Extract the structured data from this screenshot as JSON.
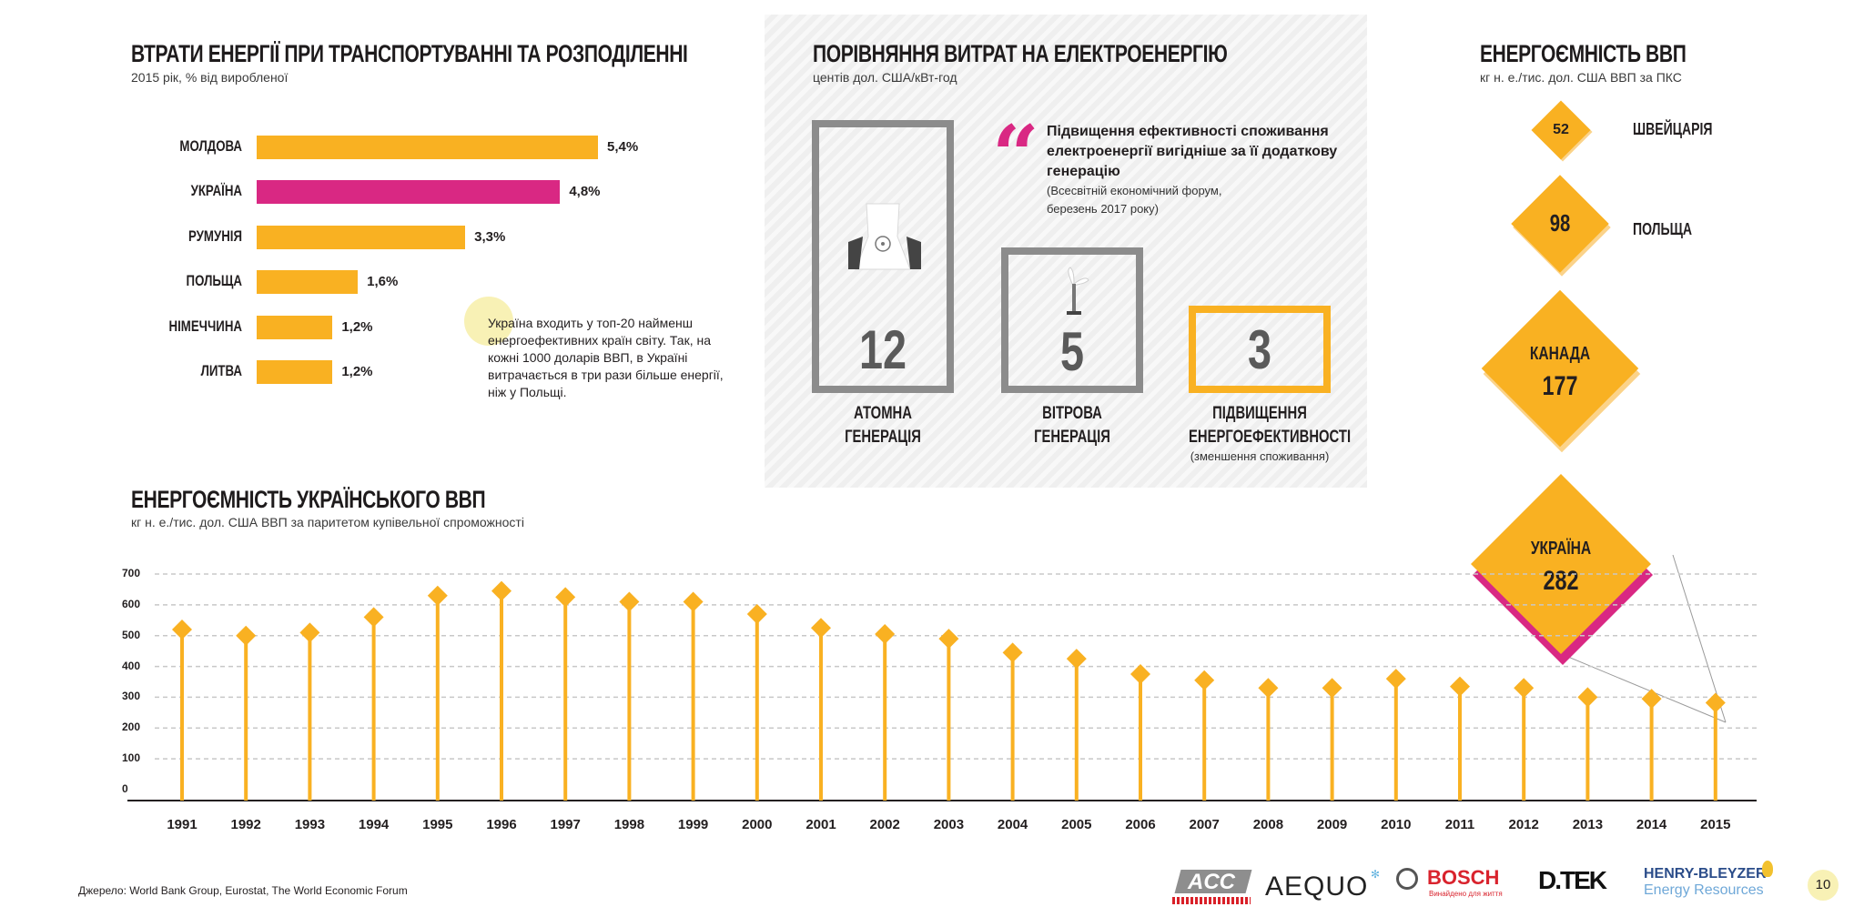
{
  "losses": {
    "title": "ВТРАТИ ЕНЕРГІЇ ПРИ ТРАНСПОРТУВАННІ ТА РОЗПОДІЛЕННІ",
    "subtitle": "2015 рік, % від виробленої",
    "note": "Україна входить у топ-20 найменш енергоефективних країн світу. Так, на кожні 1000 доларів ВВП, в Україні витрачається в три рази більше енергії, ніж у Польщі.",
    "colors": {
      "default": "#f9b122",
      "highlight": "#d92883"
    }
  },
  "comparison": {
    "title": "ПОРІВНЯННЯ ВИТРАТ НА ЕЛЕКТРОЕНЕРГІЮ",
    "subtitle": "центів дол. США/кВт-год",
    "quote": "Підвищення ефективності споживання електроенергії вигідніше за її додаткову генерацію",
    "quote_source": "(Всесвітній економічний форум, березень 2017 року)",
    "quote_icon": "quote-mark-icon",
    "items": [
      {
        "value": "12",
        "label1": "АТОМНА",
        "label2": "ГЕНЕРАЦІЯ",
        "icon": "nuclear-plant-icon"
      },
      {
        "value": "5",
        "label1": "ВІТРОВА",
        "label2": "ГЕНЕРАЦІЯ",
        "icon": "wind-turbine-icon"
      },
      {
        "value": "3",
        "label1": "ПІДВИЩЕННЯ",
        "label2": "ЕНЕРГОЕФЕКТИВНОСТІ",
        "note": "(зменшення споживання)"
      }
    ]
  },
  "intensity": {
    "title": "ЕНЕРГОЄМНІСТЬ ВВП",
    "subtitle": "кг н. е./тис. дол. США ВВП за ПКС",
    "countries": [
      {
        "name": "ШВЕЙЦАРІЯ",
        "value": "52"
      },
      {
        "name": "ПОЛЬЩА",
        "value": "98"
      },
      {
        "name": "КАНАДА",
        "value": "177"
      },
      {
        "name": "УКРАЇНА",
        "value": "282"
      }
    ]
  },
  "ukraine": {
    "title": "ЕНЕРГОЄМНІСТЬ УКРАЇНСЬКОГО ВВП",
    "subtitle": "кг н. е./тис. дол. США ВВП за паритетом купівельної спроможності"
  },
  "chart_data": [
    {
      "type": "bar",
      "orientation": "horizontal",
      "title": "ВТРАТИ ЕНЕРГІЇ ПРИ ТРАНСПОРТУВАННІ ТА РОЗПОДІЛЕННІ",
      "subtitle": "2015 рік, % від виробленої",
      "categories": [
        "МОЛДОВА",
        "УКРАЇНА",
        "РУМУНІЯ",
        "ПОЛЬЩА",
        "НІМЕЧЧИНА",
        "ЛИТВА"
      ],
      "values": [
        5.4,
        4.8,
        3.3,
        1.6,
        1.2,
        1.2
      ],
      "value_labels": [
        "5,4%",
        "4,8%",
        "3,3%",
        "1,6%",
        "1,2%",
        "1,2%"
      ],
      "highlight": "УКРАЇНА",
      "xlim": [
        0,
        5.4
      ]
    },
    {
      "type": "line",
      "style": "lollipop",
      "title": "ЕНЕРГОЄМНІСТЬ УКРАЇНСЬКОГО ВВП",
      "subtitle": "кг н. е./тис. дол. США ВВП за паритетом купівельної спроможності",
      "x": [
        "1991",
        "1992",
        "1993",
        "1994",
        "1995",
        "1996",
        "1997",
        "1998",
        "1999",
        "2000",
        "2001",
        "2002",
        "2003",
        "2004",
        "2005",
        "2006",
        "2007",
        "2008",
        "2009",
        "2010",
        "2011",
        "2012",
        "2013",
        "2014",
        "2015"
      ],
      "values": [
        520,
        500,
        510,
        560,
        630,
        645,
        625,
        610,
        610,
        570,
        525,
        505,
        490,
        445,
        425,
        375,
        355,
        330,
        330,
        360,
        335,
        330,
        300,
        295,
        282
      ],
      "yticks": [
        "0",
        "100",
        "200",
        "300",
        "400",
        "500",
        "600",
        "700"
      ],
      "ylim": [
        0,
        700
      ],
      "grid": true
    }
  ],
  "footer": {
    "source": "Джерело: World Bank Group, Eurostat, The World Economic Forum",
    "logos": [
      "ACC",
      "AEQUO",
      "BOSCH",
      "Винайдено для життя",
      "D.TEK",
      "HENRY-BLEYZER",
      "Energy Resources"
    ],
    "page": "10"
  }
}
